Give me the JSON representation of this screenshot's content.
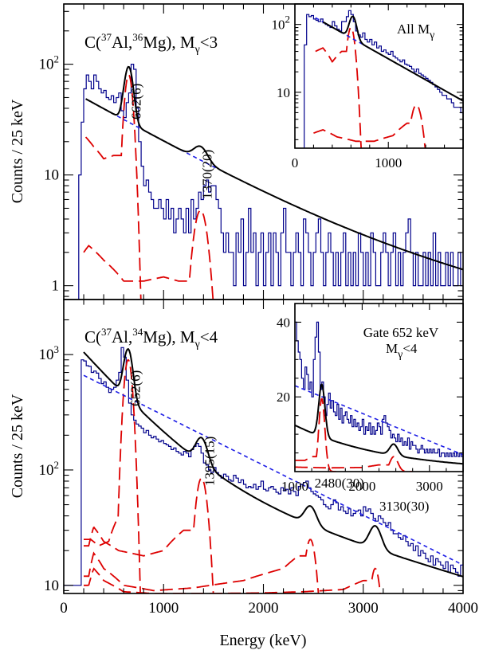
{
  "chart_data": [
    {
      "type": "histogram",
      "title": "C(37Al,36Mg), Mγ<3",
      "title_parts": {
        "base": "C(",
        "sup1": "37",
        "mid": "Al,",
        "sup2": "36",
        "end": "Mg), M",
        "sub": "γ",
        "tail": "<3"
      },
      "ylabel": "Counts / 25 keV",
      "yscale": "log",
      "xlim": [
        0,
        4000
      ],
      "ylim": [
        0.75,
        350
      ],
      "y_ticks": [
        {
          "value": 1,
          "label": "1"
        },
        {
          "value": 10,
          "label": "10"
        },
        {
          "value": 100,
          "label": "10",
          "sup": "2"
        }
      ],
      "annotations": [
        {
          "text": "662(6)",
          "x": 662
        },
        {
          "text": "1370(20)",
          "x": 1370
        }
      ],
      "bin_width_keV": 25,
      "histogram": {
        "x_start": 0,
        "counts": [
          0.5,
          0.5,
          0.5,
          0.5,
          0.5,
          0.5,
          10,
          30,
          60,
          80,
          70,
          60,
          80,
          70,
          60,
          55,
          58,
          50,
          48,
          52,
          45,
          50,
          55,
          38,
          33,
          45,
          55,
          100,
          90,
          40,
          20,
          12,
          8,
          9,
          7,
          6,
          5,
          5,
          6,
          5,
          4,
          6,
          4,
          5,
          3,
          4,
          5,
          4,
          3,
          5,
          3,
          6,
          4,
          5,
          7,
          6,
          8,
          9,
          7,
          8,
          8,
          6,
          5,
          3,
          2,
          3,
          2,
          2,
          1,
          3,
          2,
          4,
          1,
          2,
          5,
          2,
          3,
          1,
          2,
          3,
          1,
          2,
          3,
          1,
          3,
          2,
          1,
          3,
          5,
          2,
          2,
          1,
          2,
          3,
          2,
          1,
          4,
          3,
          2,
          1,
          2,
          3,
          4,
          2,
          1,
          2,
          3,
          2,
          1,
          2,
          1,
          2,
          3,
          1,
          2,
          1,
          2,
          1,
          3,
          2,
          1,
          2,
          1,
          3,
          2,
          1,
          1,
          2,
          3,
          2,
          1,
          2,
          3,
          1,
          2,
          1,
          2,
          3,
          4,
          2,
          1,
          2,
          1,
          1,
          2,
          1,
          2,
          1,
          3,
          1,
          2,
          1,
          1,
          2,
          1,
          2,
          1,
          1,
          2,
          1
        ]
      },
      "total_fit": {
        "background": {
          "amplitude": 48,
          "decay_keV": 850,
          "offset": 1.8,
          "slope": -0.00025
        },
        "peaks": [
          {
            "center": 650,
            "sigma": 40,
            "height": 65
          },
          {
            "center": 1370,
            "sigma": 65,
            "height": 4.5
          }
        ],
        "x_range": [
          220,
          4000
        ]
      },
      "background_x_range": [
        220,
        1550
      ],
      "response_curves": [
        {
          "name": "peak-662",
          "center": 650,
          "sigma": 40,
          "height": 80,
          "low_tail": [
            [
              220,
              22
            ],
            [
              300,
              18
            ],
            [
              400,
              14
            ],
            [
              500,
              15
            ]
          ],
          "x_range": [
            220,
            860
          ]
        },
        {
          "name": "peak-1370",
          "center": 1370,
          "sigma": 65,
          "height": 4.8,
          "low_tail": [
            [
              200,
              2.0
            ],
            [
              250,
              2.3
            ],
            [
              400,
              1.7
            ],
            [
              600,
              1.1
            ],
            [
              800,
              1.1
            ],
            [
              1000,
              1.2
            ],
            [
              1150,
              1.1
            ]
          ],
          "x_range": [
            200,
            1570
          ]
        }
      ],
      "inset": {
        "title": "All Mγ",
        "title_parts": {
          "base": "All M",
          "sub": "γ"
        },
        "xlim": [
          0,
          1800
        ],
        "ylim": [
          1.5,
          200
        ],
        "yscale": "log",
        "x_ticks": [
          0,
          1000
        ],
        "y_ticks": [
          {
            "value": 10,
            "label": "10"
          },
          {
            "value": 100,
            "label": "10",
            "sup": "2"
          }
        ],
        "bin_width_keV": 25,
        "histogram": {
          "x_start": 0,
          "counts": [
            1,
            1,
            1,
            1,
            50,
            140,
            130,
            135,
            120,
            115,
            110,
            120,
            105,
            100,
            95,
            90,
            110,
            95,
            85,
            80,
            110,
            110,
            130,
            160,
            140,
            110,
            80,
            70,
            65,
            75,
            60,
            55,
            60,
            50,
            55,
            45,
            48,
            40,
            42,
            38,
            36,
            40,
            34,
            32,
            30,
            28,
            30,
            26,
            25,
            24,
            22,
            20,
            22,
            19,
            18,
            17,
            16,
            15,
            14,
            13,
            12,
            11,
            10,
            9,
            9,
            8,
            8,
            7,
            6,
            6,
            6,
            5,
            5
          ]
        },
        "total_fit": {
          "background": {
            "amplitude": 130,
            "decay_keV": 560,
            "offset": 0
          },
          "peaks": [
            {
              "center": 620,
              "sigma": 35,
              "height": 70
            }
          ],
          "x_range": [
            300,
            1800
          ]
        },
        "response_curves": [
          {
            "name": "inset-peak-1",
            "center": 600,
            "sigma": 38,
            "height": 90,
            "low_tail": [
              [
                220,
                40
              ],
              [
                300,
                45
              ],
              [
                400,
                28
              ],
              [
                500,
                40
              ]
            ],
            "x_range": [
              220,
              860
            ]
          },
          {
            "name": "inset-peak-2",
            "center": 1300,
            "sigma": 55,
            "height": 6.5,
            "low_tail": [
              [
                200,
                2.5
              ],
              [
                300,
                2.8
              ],
              [
                450,
                2.2
              ],
              [
                650,
                1.9
              ],
              [
                850,
                1.9
              ],
              [
                1050,
                2.3
              ],
              [
                1200,
                3.5
              ]
            ],
            "x_range": [
              200,
              1420
            ]
          }
        ]
      }
    },
    {
      "type": "histogram",
      "title": "C(37Al,34Mg), Mγ<4",
      "title_parts": {
        "base": "C(",
        "sup1": "37",
        "mid": "Al,",
        "sup2": "34",
        "end": "Mg), M",
        "sub": "γ",
        "tail": "<4"
      },
      "ylabel": "Counts / 25 keV",
      "xlabel": "Energy (keV)",
      "yscale": "log",
      "xlim": [
        0,
        4000
      ],
      "ylim": [
        8.5,
        3000
      ],
      "x_ticks": [
        0,
        1000,
        2000,
        3000,
        4000
      ],
      "y_ticks": [
        {
          "value": 10,
          "label": "10"
        },
        {
          "value": 100,
          "label": "10",
          "sup": "2"
        },
        {
          "value": 1000,
          "label": "10",
          "sup": "3"
        }
      ],
      "annotations": [
        {
          "text": "652(6)",
          "x": 652
        },
        {
          "text": "1395(15)",
          "x": 1395
        },
        {
          "text": "2480(30)",
          "x": 2480
        },
        {
          "text": "3130(30)",
          "x": 3130
        }
      ],
      "bin_width_keV": 25,
      "histogram": {
        "x_start": 0,
        "counts": [
          10,
          10,
          10,
          10,
          10,
          10,
          10,
          900,
          880,
          800,
          790,
          700,
          720,
          690,
          620,
          560,
          580,
          520,
          470,
          500,
          520,
          600,
          700,
          1150,
          950,
          600,
          380,
          300,
          270,
          250,
          240,
          230,
          210,
          220,
          200,
          190,
          195,
          185,
          175,
          180,
          170,
          165,
          160,
          150,
          155,
          145,
          140,
          135,
          145,
          140,
          130,
          150,
          160,
          170,
          160,
          140,
          115,
          110,
          100,
          95,
          105,
          95,
          90,
          85,
          92,
          88,
          82,
          80,
          90,
          85,
          78,
          82,
          75,
          70,
          72,
          70,
          75,
          68,
          72,
          80,
          68,
          66,
          70,
          72,
          68,
          64,
          62,
          70,
          66,
          68,
          62,
          70,
          65,
          60,
          72,
          75,
          78,
          80,
          70,
          65,
          62,
          60,
          58,
          55,
          50,
          48,
          46,
          50,
          55,
          52,
          45,
          48,
          44,
          42,
          46,
          40,
          42,
          44,
          45,
          40,
          48,
          44,
          46,
          42,
          38,
          36,
          40,
          38,
          35,
          33,
          35,
          30,
          28,
          28,
          26,
          25,
          27,
          24,
          22,
          23,
          20,
          22,
          18,
          20,
          19,
          17,
          16,
          18,
          15,
          17,
          16,
          15,
          14,
          16,
          13,
          15,
          14,
          13,
          12,
          15,
          14
        ]
      },
      "total_fit": {
        "background": {
          "amplitude": 940,
          "decay_keV": 430,
          "offset": 110,
          "offset_decay_keV": 1700
        },
        "peaks": [
          {
            "center": 645,
            "sigma": 40,
            "height": 700
          },
          {
            "center": 1380,
            "sigma": 55,
            "height": 75
          },
          {
            "center": 2470,
            "sigma": 55,
            "height": 15
          },
          {
            "center": 3120,
            "sigma": 55,
            "height": 12
          }
        ],
        "x_range": [
          200,
          4000
        ]
      },
      "background_curve": {
        "x_start": 200,
        "y_start": 660,
        "x_end": 4000,
        "y_end": 15
      },
      "response_curves": [
        {
          "name": "peak-652",
          "center": 645,
          "sigma": 40,
          "height": 900,
          "low_tail": [
            [
              270,
              25
            ],
            [
              350,
              22
            ],
            [
              450,
              24
            ],
            [
              550,
              40
            ]
          ],
          "x_range": [
            200,
            780
          ]
        },
        {
          "name": "peak-1395",
          "center": 1380,
          "sigma": 55,
          "height": 85,
          "low_tail": [
            [
              250,
              22
            ],
            [
              300,
              32
            ],
            [
              400,
              24
            ],
            [
              550,
              20
            ],
            [
              800,
              18
            ],
            [
              1000,
              20
            ],
            [
              1200,
              30
            ]
          ],
          "x_range": [
            200,
            1540
          ]
        },
        {
          "name": "peak-2480",
          "center": 2470,
          "sigma": 55,
          "height": 25,
          "low_tail": [
            [
              250,
              12
            ],
            [
              300,
              19
            ],
            [
              400,
              14
            ],
            [
              600,
              10
            ],
            [
              900,
              9
            ],
            [
              1300,
              9.5
            ],
            [
              1800,
              11
            ],
            [
              2200,
              14
            ],
            [
              2350,
              18
            ]
          ],
          "x_range": [
            200,
            2700
          ]
        },
        {
          "name": "peak-3130",
          "center": 3120,
          "sigma": 50,
          "height": 14,
          "low_tail": [
            [
              250,
              10
            ],
            [
              300,
              14
            ],
            [
              400,
              11
            ],
            [
              600,
              8.8
            ],
            [
              900,
              8.5
            ],
            [
              1500,
              8.5
            ],
            [
              2000,
              8.6
            ],
            [
              2400,
              8.8
            ],
            [
              2800,
              9.2
            ],
            [
              3000,
              11
            ]
          ],
          "x_range": [
            200,
            3250
          ]
        }
      ],
      "inset": {
        "title": "Gate 652 keV",
        "title_line2_parts": {
          "base": "M",
          "sub": "γ",
          "tail": "<4"
        },
        "xlim": [
          1000,
          3500
        ],
        "ylim": [
          0,
          45
        ],
        "yscale": "linear",
        "x_ticks": [
          1000,
          2000,
          3000
        ],
        "y_ticks": [
          {
            "value": 20,
            "label": "20"
          },
          {
            "value": 40,
            "label": "40"
          }
        ],
        "bin_width_keV": 25,
        "histogram": {
          "x_start": 1000,
          "counts": [
            40,
            35,
            32,
            30,
            25,
            22,
            28,
            26,
            22,
            24,
            20,
            30,
            36,
            40,
            32,
            22,
            24,
            20,
            15,
            18,
            21,
            17,
            19,
            16,
            15,
            18,
            14,
            17,
            13,
            15,
            16,
            14,
            13,
            15,
            12,
            14,
            12,
            13,
            11,
            12,
            14,
            10,
            12,
            11,
            13,
            10,
            12,
            10,
            11,
            13,
            12,
            10,
            14,
            15,
            13,
            12,
            11,
            9,
            10,
            9,
            8,
            10,
            8,
            9,
            7,
            8,
            7,
            9,
            6,
            8,
            7,
            7,
            6,
            5,
            6,
            7,
            6,
            5,
            6,
            5,
            6,
            5,
            6,
            5,
            5,
            6,
            4,
            5,
            5,
            4,
            5,
            4,
            5,
            4,
            5,
            4,
            5,
            4,
            5,
            4
          ]
        },
        "total_fit": {
          "background": {
            "amplitude": 22,
            "decay_keV": 1400,
            "offset": 0
          },
          "peaks": [
            {
              "center": 1400,
              "sigma": 45,
              "height": 14
            },
            {
              "center": 2470,
              "sigma": 60,
              "height": 3
            }
          ],
          "x_range": [
            1000,
            3500
          ]
        },
        "background_curve": {
          "x_start": 1000,
          "y_start": 23,
          "x_end": 3500,
          "y_end": 4.5
        },
        "response_curves": [
          {
            "name": "inset-gate-peak-1",
            "center": 1400,
            "sigma": 45,
            "height": 19.5,
            "low_tail": [
              [
                1000,
                3
              ],
              [
                1150,
                3
              ],
              [
                1250,
                4
              ]
            ],
            "x_range": [
              1000,
              1660
            ]
          },
          {
            "name": "inset-gate-peak-2",
            "center": 2470,
            "sigma": 60,
            "height": 4,
            "low_tail": [
              [
                1000,
                1.2
              ],
              [
                1500,
                1
              ],
              [
                2000,
                1.1
              ],
              [
                2250,
                1.8
              ]
            ],
            "x_range": [
              1000,
              2750
            ]
          }
        ]
      }
    }
  ]
}
